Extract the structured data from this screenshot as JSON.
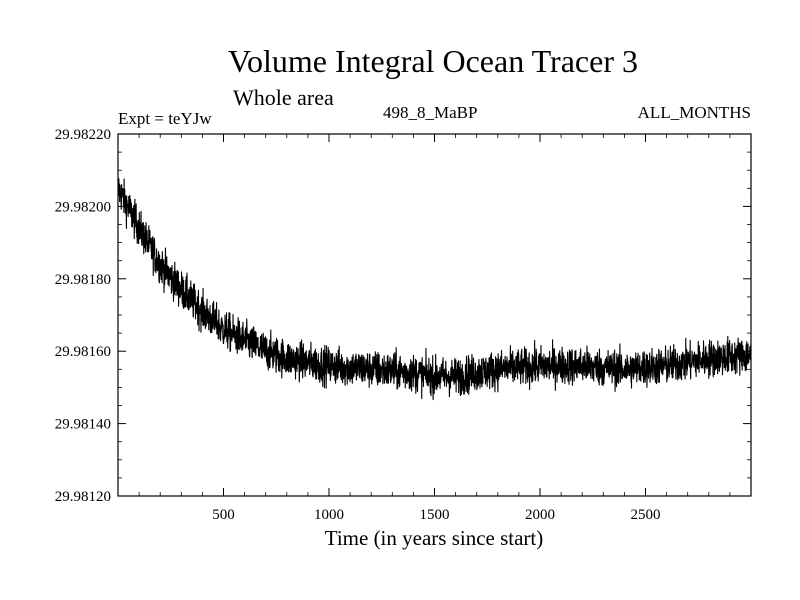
{
  "chart_data": {
    "type": "line",
    "title": "Volume Integral Ocean Tracer 3",
    "subtitle": "Whole area",
    "experiment_label": "Expt = teYJw",
    "period_label": "498_8_MaBP",
    "months_label": "ALL_MONTHS",
    "xlabel": "Time (in years since start)",
    "ylabel": "",
    "xlim": [
      0,
      3000
    ],
    "ylim": [
      29.9812,
      29.9822
    ],
    "xticks": [
      500,
      1000,
      1500,
      2000,
      2500
    ],
    "xtick_labels": [
      "500",
      "1000",
      "1500",
      "2000",
      "2500"
    ],
    "yticks": [
      29.9812,
      29.9814,
      29.9816,
      29.9818,
      29.982,
      29.9822
    ],
    "ytick_labels": [
      "29.98120",
      "29.98140",
      "29.98160",
      "29.98180",
      "29.98200",
      "29.98220"
    ],
    "grid": false,
    "series": [
      {
        "name": "Volume Integral Ocean Tracer 3",
        "color": "#000000",
        "trend": {
          "x": [
            0,
            100,
            200,
            300,
            400,
            500,
            600,
            700,
            800,
            900,
            1000,
            1200,
            1400,
            1500,
            1600,
            1800,
            2000,
            2200,
            2400,
            2600,
            2800,
            3000
          ],
          "y": [
            29.98205,
            29.98194,
            29.98184,
            29.98177,
            29.98171,
            29.98166,
            29.98163,
            29.9816,
            29.98158,
            29.98157,
            29.98156,
            29.98155,
            29.98154,
            29.98153,
            29.98153,
            29.98155,
            29.98156,
            29.98156,
            29.98155,
            29.98156,
            29.98158,
            29.98159
          ]
        },
        "noise_amplitude": 6e-05,
        "points": 3000
      }
    ]
  }
}
